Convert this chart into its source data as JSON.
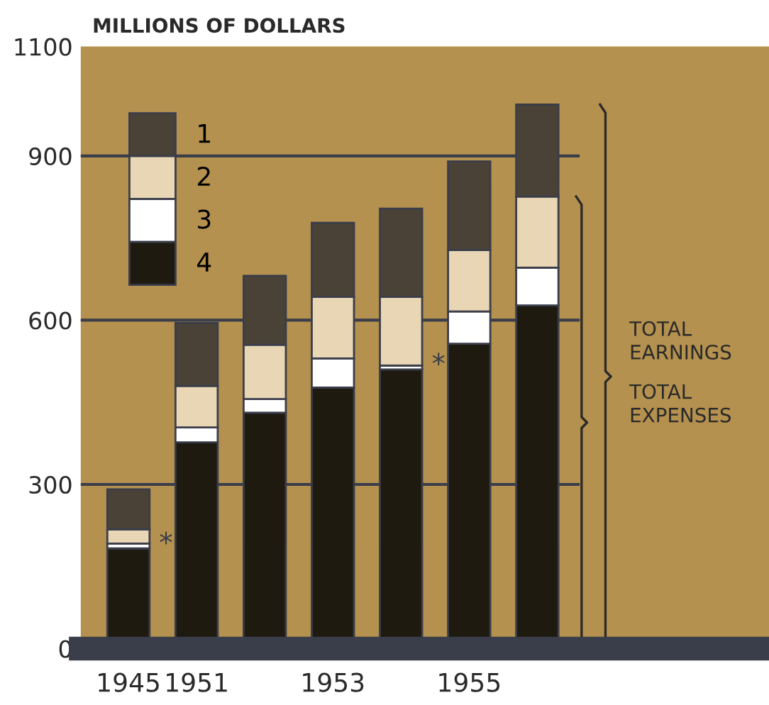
{
  "chart_data": {
    "type": "bar",
    "stacked": true,
    "ylabel": "MILLIONS OF DOLLARS",
    "categories": [
      "1945",
      "1951",
      null,
      "1953",
      null,
      "1955",
      null
    ],
    "series": [
      {
        "name": "4",
        "color": "#1e1a10",
        "values": [
          183,
          377,
          431,
          477,
          510,
          557,
          627
        ]
      },
      {
        "name": "3",
        "color": "#ffffff",
        "values": [
          9,
          27,
          25,
          53,
          7,
          59,
          69
        ]
      },
      {
        "name": "2",
        "color": "#e8d6b4",
        "values": [
          26,
          76,
          99,
          113,
          126,
          112,
          130
        ]
      },
      {
        "name": "1",
        "color": "#4a4236",
        "values": [
          73,
          115,
          126,
          135,
          161,
          162,
          168
        ]
      }
    ],
    "ylim": [
      0,
      1100
    ],
    "yticks": [
      0,
      300,
      600,
      900,
      1100
    ],
    "grid": "y",
    "legend": "top left",
    "annotations": [
      {
        "text": "*",
        "x": "1945",
        "y": 190
      },
      "*",
      "TOTAL EARNINGS",
      "TOTAL EXPENSES"
    ]
  }
}
